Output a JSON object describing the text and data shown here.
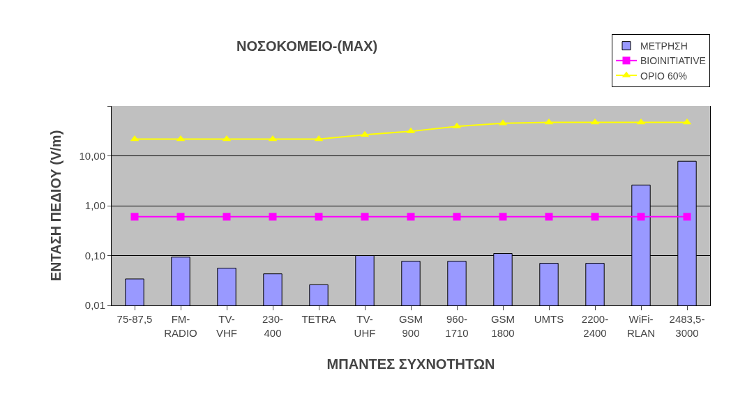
{
  "chart_data": {
    "type": "bar",
    "title": "ΝΟΣΟΚΟΜΕΙΟ-(MAX)",
    "xlabel": "ΜΠΑΝΤΕΣ ΣΥΧΝΟΤΗΤΩΝ",
    "ylabel": "ΕΝΤΑΣΗ ΠΕΔΙΟΥ (V/m)",
    "categories": [
      "75-87,5",
      "FM-\nRADIO",
      "TV-\nVHF",
      "230-\n400",
      "TETRA",
      "TV-\nUHF",
      "GSM\n900",
      "960-\n1710",
      "GSM\n1800",
      "UMTS",
      "2200-\n2400",
      "WiFi-\nRLAN",
      "2483,5-\n3000"
    ],
    "series": [
      {
        "name": "ΜΕΤΡΗΣΗ",
        "color": "#9999ff",
        "values": [
          0.034,
          0.093,
          0.056,
          0.043,
          0.026,
          0.1,
          0.077,
          0.077,
          0.11,
          0.07,
          0.07,
          2.6,
          7.8
        ]
      },
      {
        "name": "BIOINITIATIVE",
        "type": "line",
        "color": "#ff00ff",
        "marker": "square",
        "values": [
          0.6,
          0.6,
          0.6,
          0.6,
          0.6,
          0.6,
          0.6,
          0.6,
          0.6,
          0.6,
          0.6,
          0.6,
          0.6
        ]
      },
      {
        "name": "ΟΡΙΟ 60%",
        "type": "line",
        "color": "#ffff00",
        "marker": "triangle",
        "values": [
          21.7,
          21.7,
          21.7,
          21.7,
          21.7,
          26.5,
          31,
          39,
          45,
          47,
          47,
          47,
          47
        ]
      }
    ],
    "log": "y",
    "ylim": [
      0.01,
      100
    ],
    "yticks": [
      {
        "value": 0.01,
        "label": "0,01"
      },
      {
        "value": 0.1,
        "label": "0,10"
      },
      {
        "value": 1,
        "label": "1,00"
      },
      {
        "value": 10,
        "label": "10,00"
      },
      {
        "value": 100,
        "label": null
      }
    ],
    "grid": "y",
    "legend": "top right"
  }
}
